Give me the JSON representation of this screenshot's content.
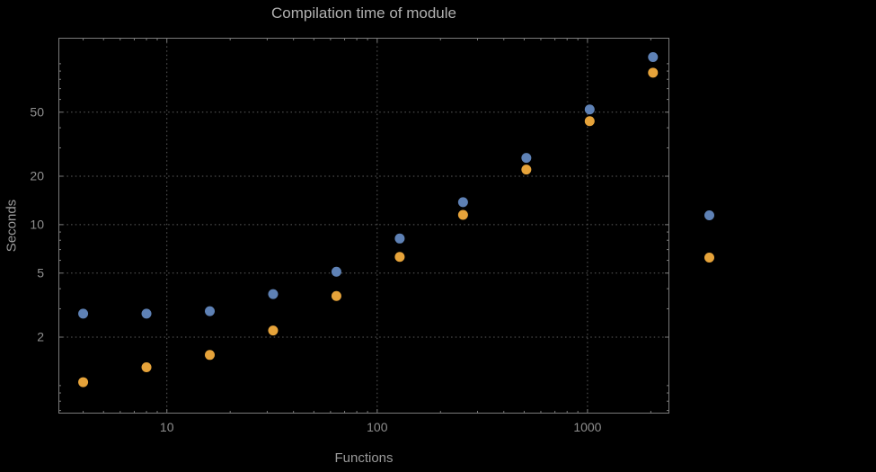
{
  "title": "Compilation time of module",
  "xlabel": "Functions",
  "ylabel": "Seconds",
  "colors": {
    "background": "#000000",
    "title_text": "#b0b0b0",
    "axis_text": "#9a9a9a",
    "tick_text": "#8f8f8f",
    "grid": "#5e5e5e",
    "frame": "#7a7a7a",
    "series_blue": "#5e81b5",
    "series_orange": "#e6a33a"
  },
  "chart_data": {
    "type": "scatter",
    "title": "Compilation time of module",
    "xlabel": "Functions",
    "ylabel": "Seconds",
    "x_scale": "log",
    "y_scale": "log",
    "grid": true,
    "legend_position": "right-outside",
    "x": [
      4,
      8,
      16,
      32,
      64,
      128,
      256,
      512,
      1024,
      2048
    ],
    "series": [
      {
        "name": "blue",
        "color": "#5e81b5",
        "values": [
          2.8,
          2.8,
          2.9,
          3.7,
          5.1,
          8.2,
          13.8,
          26,
          52,
          110
        ]
      },
      {
        "name": "orange",
        "color": "#e6a33a",
        "values": [
          1.05,
          1.3,
          1.55,
          2.2,
          3.6,
          6.3,
          11.5,
          22,
          44,
          88
        ]
      }
    ],
    "x_ticks": [
      10,
      100,
      1000
    ],
    "y_ticks": [
      2,
      5,
      10,
      20,
      50
    ],
    "x_range": [
      3.05,
      2450
    ],
    "y_range": [
      0.67,
      145
    ]
  }
}
